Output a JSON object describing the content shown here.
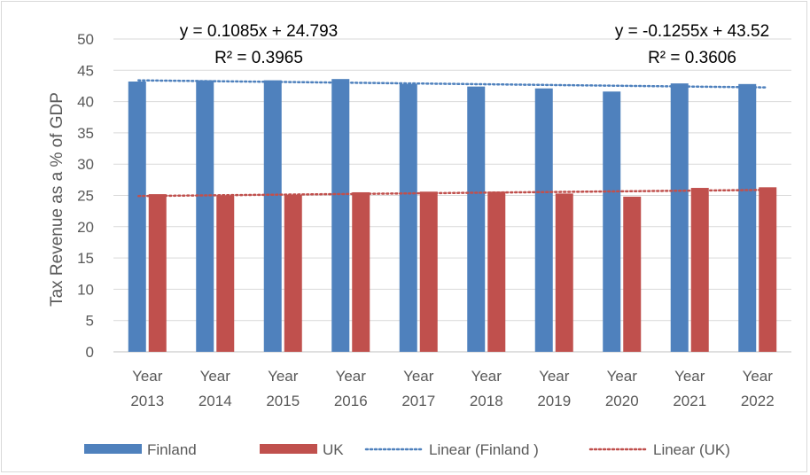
{
  "chart_data": {
    "type": "bar",
    "title": "",
    "xlabel": "",
    "ylabel": "Tax Revenue as a % of GDP",
    "ylim": [
      0,
      50
    ],
    "yticks": [
      0,
      5,
      10,
      15,
      20,
      25,
      30,
      35,
      40,
      45,
      50
    ],
    "grid": true,
    "legend_position": "bottom",
    "categories": [
      [
        "Year",
        "2013"
      ],
      [
        "Year",
        "2014"
      ],
      [
        "Year",
        "2015"
      ],
      [
        "Year",
        "2016"
      ],
      [
        "Year",
        "2017"
      ],
      [
        "Year",
        "2018"
      ],
      [
        "Year",
        "2019"
      ],
      [
        "Year",
        "2020"
      ],
      [
        "Year",
        "2021"
      ],
      [
        "Year",
        "2022"
      ]
    ],
    "series": [
      {
        "name": "Finland",
        "color": "#4f81bd",
        "values": [
          43.2,
          43.4,
          43.4,
          43.6,
          42.8,
          42.4,
          42.1,
          41.6,
          42.9,
          42.8
        ]
      },
      {
        "name": "UK",
        "color": "#c0504d",
        "values": [
          25.2,
          25.0,
          25.1,
          25.5,
          25.6,
          25.6,
          25.3,
          24.8,
          26.2,
          26.3
        ]
      }
    ],
    "trendlines": [
      {
        "name": "Linear (Finland )",
        "color": "#4f81bd",
        "start": 43.39,
        "end": 42.26
      },
      {
        "name": "Linear (UK)",
        "color": "#c0504d",
        "start": 24.9,
        "end": 25.88
      }
    ],
    "annotations": [
      {
        "id": "uk-eq",
        "lines": [
          "y = 0.1085x + 24.793",
          "R² = 0.3965"
        ]
      },
      {
        "id": "finland-eq",
        "lines": [
          "y = -0.1255x + 43.52",
          "R² = 0.3606"
        ]
      }
    ]
  }
}
